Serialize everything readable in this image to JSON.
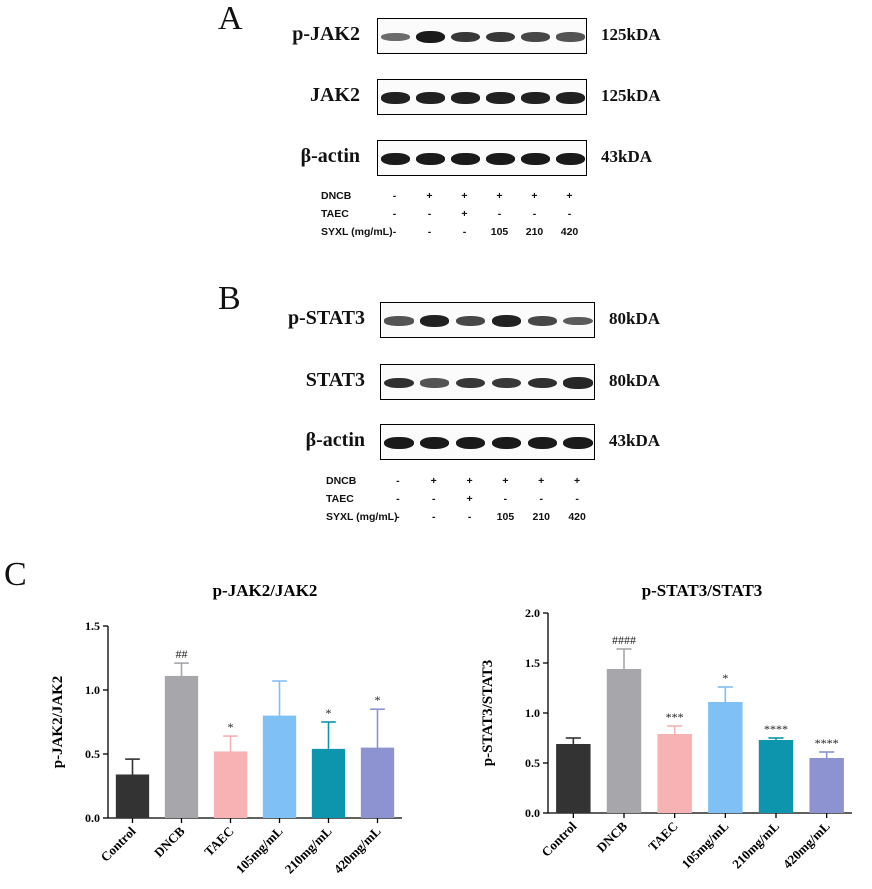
{
  "panels": {
    "A": {
      "letter": "A",
      "blots": [
        {
          "protein": "p-JAK2",
          "kda": "125kDA",
          "intensities": [
            0.45,
            1.0,
            0.8,
            0.8,
            0.7,
            0.6
          ]
        },
        {
          "protein": "JAK2",
          "kda": "125kDA",
          "intensities": [
            0.95,
            0.95,
            0.95,
            0.95,
            0.95,
            0.95
          ]
        },
        {
          "protein": "β-actin",
          "kda": "43kDA",
          "intensities": [
            1.0,
            1.0,
            1.0,
            1.0,
            1.0,
            1.0
          ]
        }
      ],
      "treatments": [
        {
          "label": "DNCB",
          "values": [
            "-",
            "+",
            "+",
            "+",
            "+",
            "+"
          ]
        },
        {
          "label": "TAEC",
          "values": [
            "-",
            "-",
            "+",
            "-",
            "-",
            "-"
          ]
        },
        {
          "label": "SYXL (mg/mL)",
          "values": [
            "-",
            "-",
            "-",
            "105",
            "210",
            "420"
          ]
        }
      ]
    },
    "B": {
      "letter": "B",
      "blots": [
        {
          "protein": "p-STAT3",
          "kda": "80kDA",
          "intensities": [
            0.6,
            0.95,
            0.7,
            0.95,
            0.7,
            0.55
          ]
        },
        {
          "protein": "STAT3",
          "kda": "80kDA",
          "intensities": [
            0.85,
            0.6,
            0.8,
            0.8,
            0.85,
            0.9
          ]
        },
        {
          "protein": "β-actin",
          "kda": "43kDA",
          "intensities": [
            1.0,
            1.0,
            1.0,
            1.0,
            1.0,
            1.0
          ]
        }
      ],
      "treatments": [
        {
          "label": "DNCB",
          "values": [
            "-",
            "+",
            "+",
            "+",
            "+",
            "+"
          ]
        },
        {
          "label": "TAEC",
          "values": [
            "-",
            "-",
            "+",
            "-",
            "-",
            "-"
          ]
        },
        {
          "label": "SYXL (mg/mL)",
          "values": [
            "-",
            "-",
            "-",
            "105",
            "210",
            "420"
          ]
        }
      ]
    },
    "C": {
      "letter": "C"
    }
  },
  "chart_data": [
    {
      "type": "bar",
      "title": "p-JAK2/JAK2",
      "ylabel": "p-JAK2/JAK2",
      "xlabel": "",
      "categories": [
        "Control",
        "DNCB",
        "TAEC",
        "105mg/mL",
        "210mg/mL",
        "420mg/mL"
      ],
      "values": [
        0.34,
        1.11,
        0.52,
        0.8,
        0.54,
        0.55
      ],
      "errors": [
        0.12,
        0.1,
        0.12,
        0.27,
        0.21,
        0.3
      ],
      "annotations": [
        "",
        "##",
        "*",
        "",
        "*",
        "*"
      ],
      "colors": [
        "#333333",
        "#a7a6ab",
        "#f7b3b4",
        "#7fc0f5",
        "#0c95ad",
        "#8c93d0"
      ],
      "ylim": [
        0,
        1.5
      ],
      "yticks": [
        "0.0",
        "0.5",
        "1.0",
        "1.5"
      ]
    },
    {
      "type": "bar",
      "title": "p-STAT3/STAT3",
      "ylabel": "p-STAT3/STAT3",
      "xlabel": "",
      "categories": [
        "Control",
        "DNCB",
        "TAEC",
        "105mg/mL",
        "210mg/mL",
        "420mg/mL"
      ],
      "values": [
        0.69,
        1.44,
        0.79,
        1.11,
        0.73,
        0.55
      ],
      "errors": [
        0.06,
        0.2,
        0.08,
        0.15,
        0.02,
        0.06
      ],
      "annotations": [
        "",
        "####",
        "***",
        "*",
        "****",
        "****"
      ],
      "colors": [
        "#333333",
        "#a7a6ab",
        "#f7b3b4",
        "#7fc0f5",
        "#0c95ad",
        "#8c93d0"
      ],
      "ylim": [
        0,
        2.0
      ],
      "yticks": [
        "0.0",
        "0.5",
        "1.0",
        "1.5",
        "2.0"
      ]
    }
  ]
}
